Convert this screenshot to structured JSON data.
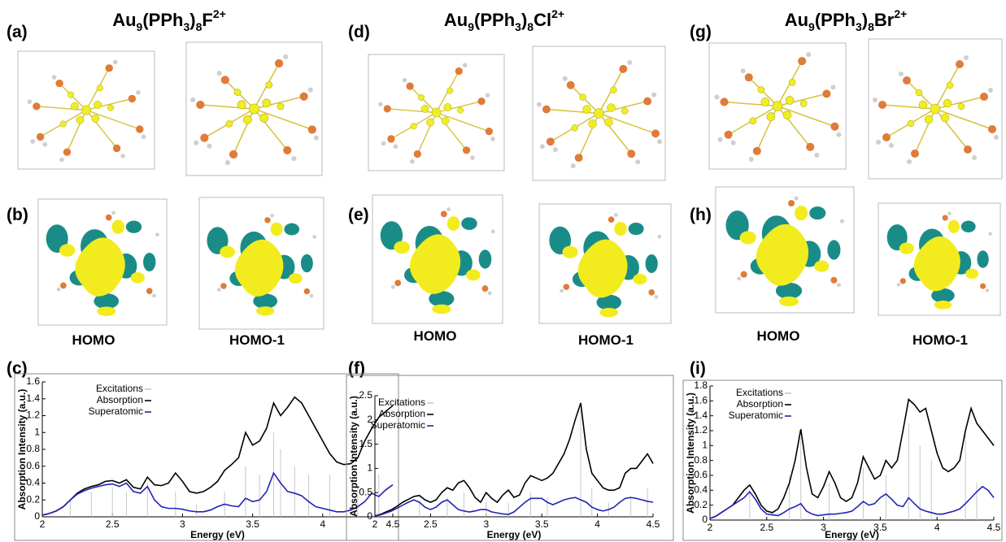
{
  "figure": {
    "titles": [
      {
        "parts": [
          "Au",
          "9",
          "(PPh",
          "3",
          ")",
          "8",
          "F",
          "2+"
        ]
      },
      {
        "parts": [
          "Au",
          "9",
          "(PPh",
          "3",
          ")",
          "8",
          "Cl",
          "2+"
        ]
      },
      {
        "parts": [
          "Au",
          "9",
          "(PPh",
          "3",
          ")",
          "8",
          "Br",
          "2+"
        ]
      }
    ],
    "panel_labels": [
      "(a)",
      "(b)",
      "(c)",
      "(d)",
      "(e)",
      "(f)",
      "(g)",
      "(h)",
      "(i)"
    ],
    "orbital_labels": [
      "HOMO",
      "HOMO-1",
      "HOMO",
      "HOMO-1",
      "HOMO",
      "HOMO-1"
    ]
  },
  "chart_data": [
    {
      "type": "line",
      "xlabel": "Energy (eV)",
      "ylabel": "Absorption Intensity (a.u.)",
      "legend": "upper left",
      "x": [
        2,
        2.05,
        2.1,
        2.15,
        2.2,
        2.25,
        2.3,
        2.35,
        2.4,
        2.45,
        2.5,
        2.55,
        2.6,
        2.65,
        2.7,
        2.75,
        2.8,
        2.85,
        2.9,
        2.95,
        3,
        3.05,
        3.1,
        3.15,
        3.2,
        3.25,
        3.3,
        3.35,
        3.4,
        3.45,
        3.5,
        3.55,
        3.6,
        3.65,
        3.7,
        3.75,
        3.8,
        3.85,
        3.9,
        3.95,
        4,
        4.05,
        4.1,
        4.15,
        4.2,
        4.25,
        4.3,
        4.35,
        4.4,
        4.45,
        4.5
      ],
      "xlim": [
        2,
        4.5
      ],
      "xticks": [
        2,
        2.5,
        3,
        3.5,
        4,
        4.5
      ],
      "ylim": [
        0,
        1.6
      ],
      "yticks": [
        0,
        0.2,
        0.4,
        0.6,
        0.8,
        1,
        1.2,
        1.4,
        1.6
      ],
      "excitations": {
        "name": "Excitations",
        "color": "#c8c8c8",
        "x": [
          2.2,
          2.35,
          2.5,
          2.6,
          2.75,
          2.95,
          3.1,
          3.3,
          3.45,
          3.55,
          3.65,
          3.7,
          3.8,
          3.9,
          4.05,
          4.25,
          4.4
        ],
        "values": [
          0.2,
          0.3,
          0.35,
          0.3,
          0.4,
          0.3,
          0.15,
          0.3,
          0.6,
          0.5,
          1.0,
          0.8,
          0.6,
          0.5,
          0.5,
          0.4,
          0.5
        ]
      },
      "series": [
        {
          "name": "Absorption",
          "color": "#000000",
          "values": [
            0.02,
            0.04,
            0.07,
            0.12,
            0.2,
            0.28,
            0.33,
            0.36,
            0.38,
            0.42,
            0.43,
            0.4,
            0.44,
            0.35,
            0.33,
            0.47,
            0.38,
            0.37,
            0.4,
            0.52,
            0.42,
            0.3,
            0.28,
            0.3,
            0.35,
            0.42,
            0.55,
            0.62,
            0.7,
            1.0,
            0.85,
            0.9,
            1.05,
            1.35,
            1.2,
            1.3,
            1.42,
            1.35,
            1.2,
            1.05,
            0.9,
            0.75,
            0.65,
            0.62,
            0.63,
            0.7,
            0.9,
            1.05,
            1.18,
            1.25,
            1.32
          ]
        },
        {
          "name": "Superatomic",
          "color": "#2323b4",
          "values": [
            0.02,
            0.04,
            0.07,
            0.12,
            0.2,
            0.27,
            0.31,
            0.34,
            0.36,
            0.38,
            0.39,
            0.36,
            0.4,
            0.3,
            0.28,
            0.36,
            0.2,
            0.12,
            0.1,
            0.1,
            0.09,
            0.07,
            0.06,
            0.06,
            0.08,
            0.12,
            0.15,
            0.13,
            0.12,
            0.22,
            0.18,
            0.2,
            0.3,
            0.52,
            0.4,
            0.3,
            0.28,
            0.25,
            0.18,
            0.12,
            0.1,
            0.08,
            0.06,
            0.06,
            0.08,
            0.12,
            0.18,
            0.28,
            0.24,
            0.32,
            0.38
          ]
        }
      ]
    },
    {
      "type": "line",
      "xlabel": "Energy (eV)",
      "ylabel": "Absorption Intensity (a.u.)",
      "legend": "upper left",
      "x": [
        2,
        2.05,
        2.1,
        2.15,
        2.2,
        2.25,
        2.3,
        2.35,
        2.4,
        2.45,
        2.5,
        2.55,
        2.6,
        2.65,
        2.7,
        2.75,
        2.8,
        2.85,
        2.9,
        2.95,
        3,
        3.05,
        3.1,
        3.15,
        3.2,
        3.25,
        3.3,
        3.35,
        3.4,
        3.45,
        3.5,
        3.55,
        3.6,
        3.65,
        3.7,
        3.75,
        3.8,
        3.85,
        3.9,
        3.95,
        4,
        4.05,
        4.1,
        4.15,
        4.2,
        4.25,
        4.3,
        4.35,
        4.4,
        4.45,
        4.5
      ],
      "xlim": [
        2,
        4.5
      ],
      "xticks": [
        2,
        2.5,
        3,
        3.5,
        4,
        4.5
      ],
      "ylim": [
        0,
        2.5
      ],
      "yticks": [
        0,
        0.5,
        1,
        1.5,
        2,
        2.5
      ],
      "excitations": {
        "name": "Excitations",
        "color": "#c8c8c8",
        "x": [
          2.4,
          2.65,
          2.8,
          3.0,
          3.2,
          3.4,
          3.55,
          3.85,
          3.95,
          4.1,
          4.3,
          4.45
        ],
        "values": [
          0.3,
          0.4,
          0.5,
          0.3,
          0.3,
          0.5,
          0.4,
          2.2,
          0.6,
          0.3,
          0.4,
          0.6
        ]
      },
      "series": [
        {
          "name": "Absorption",
          "color": "#000000",
          "values": [
            0.02,
            0.05,
            0.1,
            0.15,
            0.22,
            0.3,
            0.36,
            0.42,
            0.44,
            0.35,
            0.3,
            0.35,
            0.5,
            0.6,
            0.55,
            0.7,
            0.75,
            0.6,
            0.4,
            0.3,
            0.5,
            0.38,
            0.3,
            0.45,
            0.55,
            0.4,
            0.45,
            0.7,
            0.85,
            0.8,
            0.75,
            0.8,
            0.9,
            1.1,
            1.3,
            1.6,
            2.0,
            2.35,
            1.4,
            0.9,
            0.75,
            0.6,
            0.55,
            0.55,
            0.6,
            0.9,
            1.0,
            1.0,
            1.15,
            1.3,
            1.1
          ]
        },
        {
          "name": "Superatomic",
          "color": "#2323b4",
          "values": [
            0.02,
            0.04,
            0.08,
            0.12,
            0.18,
            0.24,
            0.3,
            0.35,
            0.3,
            0.2,
            0.15,
            0.2,
            0.3,
            0.35,
            0.25,
            0.15,
            0.12,
            0.1,
            0.12,
            0.15,
            0.15,
            0.1,
            0.08,
            0.06,
            0.05,
            0.1,
            0.2,
            0.3,
            0.38,
            0.38,
            0.38,
            0.3,
            0.25,
            0.3,
            0.35,
            0.38,
            0.4,
            0.35,
            0.3,
            0.2,
            0.15,
            0.12,
            0.15,
            0.2,
            0.3,
            0.38,
            0.4,
            0.38,
            0.35,
            0.32,
            0.3
          ]
        }
      ]
    },
    {
      "type": "line",
      "xlabel": "Energy (eV)",
      "ylabel": "Absorption Intensity (a.u.)",
      "legend": "upper left",
      "x": [
        2,
        2.05,
        2.1,
        2.15,
        2.2,
        2.25,
        2.3,
        2.35,
        2.4,
        2.45,
        2.5,
        2.55,
        2.6,
        2.65,
        2.7,
        2.75,
        2.8,
        2.85,
        2.9,
        2.95,
        3,
        3.05,
        3.1,
        3.15,
        3.2,
        3.25,
        3.3,
        3.35,
        3.4,
        3.45,
        3.5,
        3.55,
        3.6,
        3.65,
        3.7,
        3.75,
        3.8,
        3.85,
        3.9,
        3.95,
        4,
        4.05,
        4.1,
        4.15,
        4.2,
        4.25,
        4.3,
        4.35,
        4.4,
        4.45,
        4.5
      ],
      "xlim": [
        2,
        4.5
      ],
      "xticks": [
        2,
        2.5,
        3,
        3.5,
        4,
        4.5
      ],
      "ylim": [
        0,
        1.8
      ],
      "yticks": [
        0,
        0.2,
        0.4,
        0.6,
        0.8,
        1,
        1.2,
        1.4,
        1.6,
        1.8
      ],
      "excitations": {
        "name": "Excitations",
        "color": "#c8c8c8",
        "x": [
          2.35,
          2.7,
          2.8,
          3.05,
          3.35,
          3.55,
          3.75,
          3.85,
          3.95,
          4.25,
          4.35
        ],
        "values": [
          0.4,
          0.6,
          1.1,
          0.5,
          0.7,
          0.6,
          1.3,
          1.0,
          0.8,
          1.2,
          0.5
        ]
      },
      "series": [
        {
          "name": "Absorption",
          "color": "#000000",
          "values": [
            0.02,
            0.05,
            0.1,
            0.15,
            0.2,
            0.3,
            0.4,
            0.47,
            0.35,
            0.2,
            0.12,
            0.1,
            0.15,
            0.3,
            0.5,
            0.8,
            1.22,
            0.7,
            0.35,
            0.3,
            0.45,
            0.65,
            0.5,
            0.3,
            0.25,
            0.3,
            0.5,
            0.85,
            0.7,
            0.55,
            0.6,
            0.8,
            0.7,
            0.8,
            1.2,
            1.62,
            1.55,
            1.45,
            1.5,
            1.2,
            0.9,
            0.7,
            0.65,
            0.7,
            0.8,
            1.2,
            1.5,
            1.3,
            1.2,
            1.1,
            1.0
          ]
        },
        {
          "name": "Superatomic",
          "color": "#2323b4",
          "values": [
            0.02,
            0.05,
            0.1,
            0.15,
            0.2,
            0.25,
            0.3,
            0.38,
            0.28,
            0.15,
            0.08,
            0.07,
            0.06,
            0.1,
            0.15,
            0.18,
            0.22,
            0.12,
            0.08,
            0.06,
            0.07,
            0.08,
            0.08,
            0.09,
            0.1,
            0.12,
            0.18,
            0.25,
            0.2,
            0.22,
            0.3,
            0.35,
            0.28,
            0.2,
            0.18,
            0.3,
            0.22,
            0.15,
            0.12,
            0.1,
            0.08,
            0.08,
            0.1,
            0.12,
            0.15,
            0.22,
            0.3,
            0.38,
            0.45,
            0.4,
            0.3
          ]
        }
      ]
    }
  ]
}
